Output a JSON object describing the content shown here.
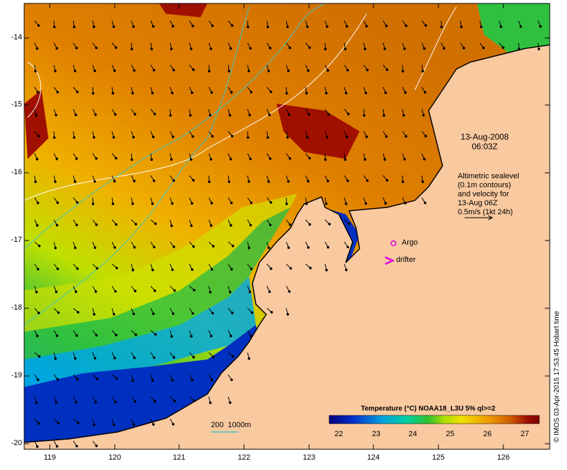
{
  "date": {
    "line1": "13-Aug-2008",
    "line2": "06:03Z"
  },
  "annotation": {
    "line1": "Altimetric sealevel",
    "line2": "(0.1m contours)",
    "line3": "and velocity for",
    "line4": "13-Aug 06Z",
    "line5": "0.5m/s (1kt 24h)"
  },
  "legend": {
    "argo": "Argo",
    "drifter": "drifter",
    "argo_color": "#e000e0"
  },
  "isobath_label": "200  1000m",
  "colorbar": {
    "title": "Temperature (°C) NOAA18_L3U 5% ql>=2",
    "ticks": [
      "22",
      "23",
      "24",
      "25",
      "26",
      "27"
    ]
  },
  "x_axis": {
    "ticks": [
      "119",
      "120",
      "121",
      "122",
      "123",
      "124",
      "125",
      "126"
    ]
  },
  "y_axis": {
    "ticks": [
      "-14",
      "-15",
      "-16",
      "-17",
      "-18",
      "-19",
      "-20"
    ]
  },
  "credit": "© IMOS 03-Apr-2015 17:53:45 Hobart time",
  "colors": {
    "land": "#f9c9a0",
    "isobath": "#3cc8c8",
    "sst_scale": [
      "#00007f",
      "#0033cc",
      "#00a0e0",
      "#00d0a0",
      "#30c030",
      "#b0e000",
      "#f0e000",
      "#f0a000",
      "#d06000",
      "#a01000",
      "#800000"
    ]
  }
}
